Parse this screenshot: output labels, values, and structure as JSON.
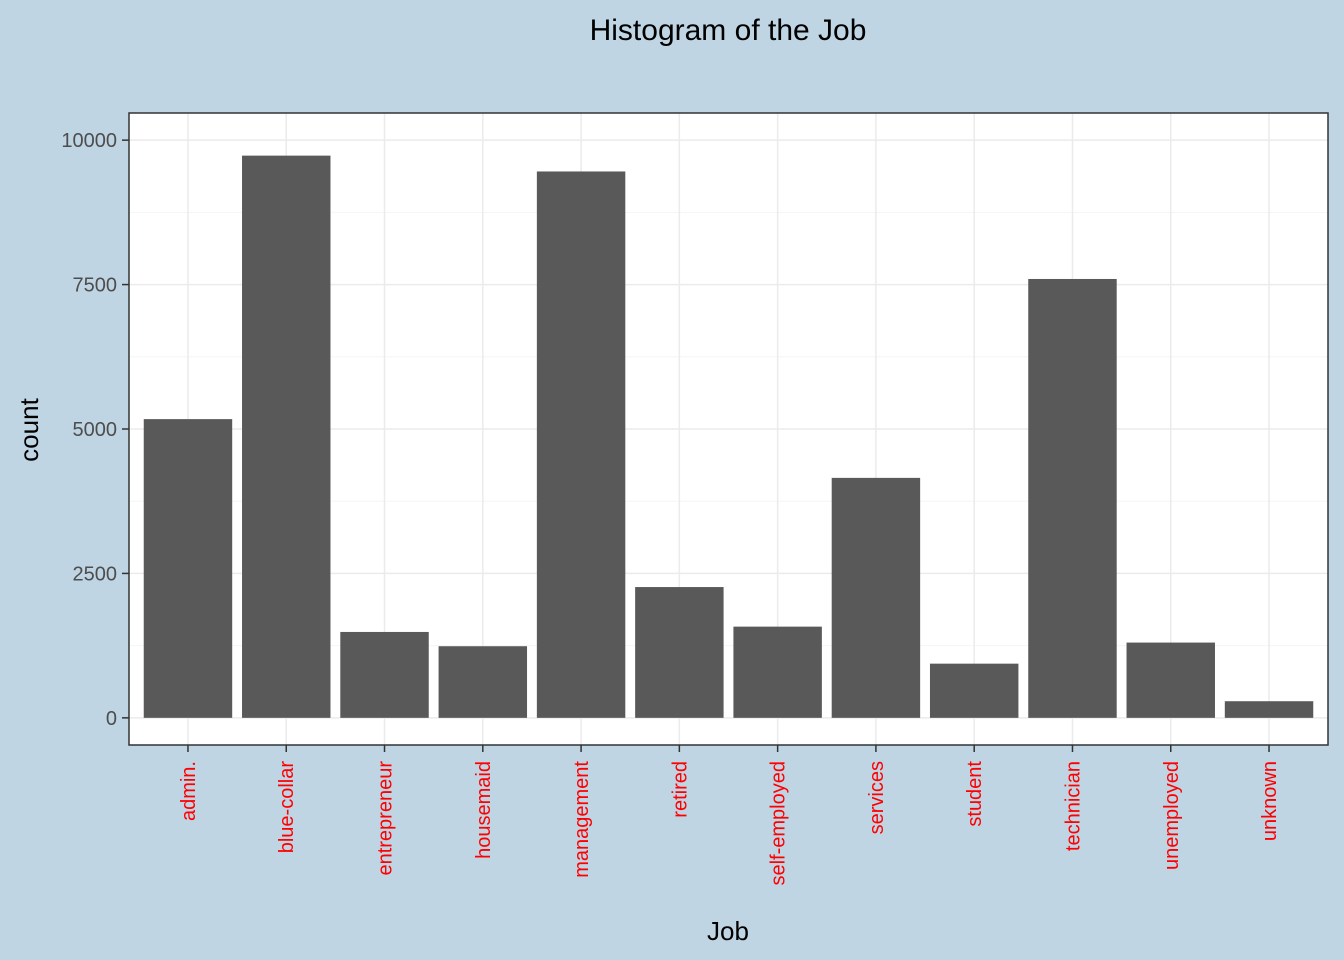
{
  "chart_data": {
    "type": "bar",
    "title": "Histogram of the Job",
    "xlabel": "Job",
    "ylabel": "count",
    "categories": [
      "admin.",
      "blue-collar",
      "entrepreneur",
      "housemaid",
      "management",
      "retired",
      "self-employed",
      "services",
      "student",
      "technician",
      "unemployed",
      "unknown"
    ],
    "values": [
      5171,
      9732,
      1487,
      1240,
      9458,
      2264,
      1579,
      4154,
      938,
      7597,
      1303,
      288
    ],
    "ylim": [
      -470,
      10470
    ],
    "yticks": [
      0,
      2500,
      5000,
      7500,
      10000
    ],
    "ytick_labels": [
      "0",
      "2500",
      "5000",
      "7500",
      "10000"
    ],
    "grid": true,
    "colors": {
      "background": "#bfd5e4",
      "panel": "#ffffff",
      "bar": "#595959",
      "grid_major": "#ebebeb",
      "grid_minor": "#f5f5f5",
      "panel_border": "#333333",
      "xtick_label": "#ff0000",
      "ytick_label": "#4d4d4d",
      "title": "#000000"
    }
  }
}
